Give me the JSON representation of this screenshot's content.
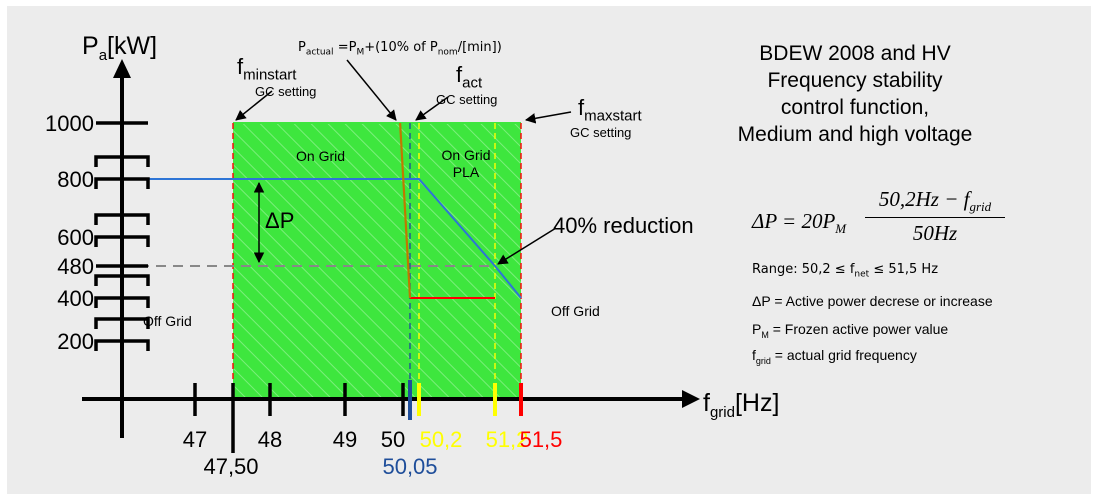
{
  "chart_data": {
    "type": "line",
    "title": [
      "BDEW 2008 and HV",
      "Frequency stability",
      "control function,",
      "Medium and high voltage"
    ],
    "ylabel": {
      "main": "P",
      "sub": "a",
      "tail": "[kW]"
    },
    "xlabel": {
      "main": "f",
      "sub": "grid",
      "tail": "[Hz]"
    },
    "y_ticks": [
      {
        "value": 1000,
        "label": "1000"
      },
      {
        "value": 800,
        "label": "800"
      },
      {
        "value": 600,
        "label": "600"
      },
      {
        "value": 480,
        "label": "480"
      },
      {
        "value": 400,
        "label": "400"
      },
      {
        "value": 200,
        "label": "200"
      }
    ],
    "x_ticks": [
      {
        "value": 47,
        "label": "47",
        "row": "upper",
        "color": "#000000"
      },
      {
        "value": 47.5,
        "label": "47,50",
        "row": "lower",
        "color": "#000000"
      },
      {
        "value": 48,
        "label": "48",
        "row": "upper",
        "color": "#000000"
      },
      {
        "value": 49,
        "label": "49",
        "row": "upper",
        "color": "#000000"
      },
      {
        "value": 50,
        "label": "50",
        "row": "upper",
        "color": "#000000"
      },
      {
        "value": 50.05,
        "label": "50,05",
        "row": "lower",
        "color": "#1f4e9a"
      },
      {
        "value": 50.2,
        "label": "50,2",
        "row": "upper",
        "color": "#ffff00"
      },
      {
        "value": 51.2,
        "label": "51,2",
        "row": "upper",
        "color": "#ffff00"
      },
      {
        "value": 51.5,
        "label": "51,5",
        "row": "upper",
        "color": "#ff0000"
      }
    ],
    "series": [
      {
        "name": "",
        "color": "#2e75d6",
        "points": [
          [
            46.97,
            800
          ],
          [
            50.2,
            800
          ],
          [
            51.2,
            480
          ],
          [
            51.5,
            400
          ]
        ]
      },
      {
        "name": "",
        "color": "#ff0000",
        "points": [
          [
            51.2,
            400
          ],
          [
            50.2,
            400
          ],
          [
            50.05,
            400
          ]
        ]
      }
    ],
    "ramp_line": {
      "color": "#c07800",
      "points": [
        [
          49.95,
          1000
        ],
        [
          50.05,
          400
        ]
      ]
    },
    "reference_480": {
      "value": 480,
      "from_x": 46.97,
      "to_x": 51.2,
      "color": "#888888"
    },
    "regions": [
      {
        "label": "On Grid",
        "x_from": 47.5,
        "x_to": 50.05
      },
      {
        "label": "On Grid PLA",
        "x_from": 50.05,
        "x_to": 51.5
      }
    ],
    "fill_color": "#3ee63e",
    "markers": [
      {
        "value": 47.5,
        "color": "#ff0000"
      },
      {
        "value": 50.05,
        "color": "#1f4e9a"
      },
      {
        "value": 50.2,
        "color": "#ffff00"
      },
      {
        "value": 51.2,
        "color": "#ffff00"
      },
      {
        "value": 51.5,
        "color": "#ff0000"
      }
    ],
    "annotations": {
      "p_actual": {
        "main": "P",
        "sub": "actual",
        "rest1": " =P",
        "sub2": "M",
        "rest2": "+(10% of P",
        "sub3": "nom",
        "rest3": "/[min])"
      },
      "f_minstart": {
        "main": "f",
        "sub": "minstart",
        "note": "GC setting"
      },
      "f_act": {
        "main": "f",
        "sub": "act",
        "note": "GC setting"
      },
      "f_maxstart": {
        "main": "f",
        "sub": "maxstart",
        "note": "GC setting"
      },
      "on_grid": "On Grid",
      "on_grid_pla_1": "On Grid",
      "on_grid_pla_2": "PLA",
      "off_grid_left": "Off Grid",
      "off_grid_right": "Off Grid",
      "delta_p": "ΔP",
      "reduction": "40% reduction"
    },
    "formula": {
      "lhs": "ΔP = 20P",
      "lhs_sub": "M",
      "numerator": "50,2Hz − f",
      "numerator_sub": "grid",
      "denominator": "50Hz"
    },
    "notes": {
      "range": {
        "a": "Range:  50,2 ≤ f",
        "sub": "net",
        "b": " ≤ 51,5 Hz"
      },
      "delta": "ΔP = Active power decrese or increase",
      "pm": {
        "a": "P",
        "sub": "M",
        "b": " = Frozen active power value"
      },
      "fgrid": {
        "a": "f",
        "sub": "grid",
        "b": " = actual grid frequency"
      }
    }
  }
}
